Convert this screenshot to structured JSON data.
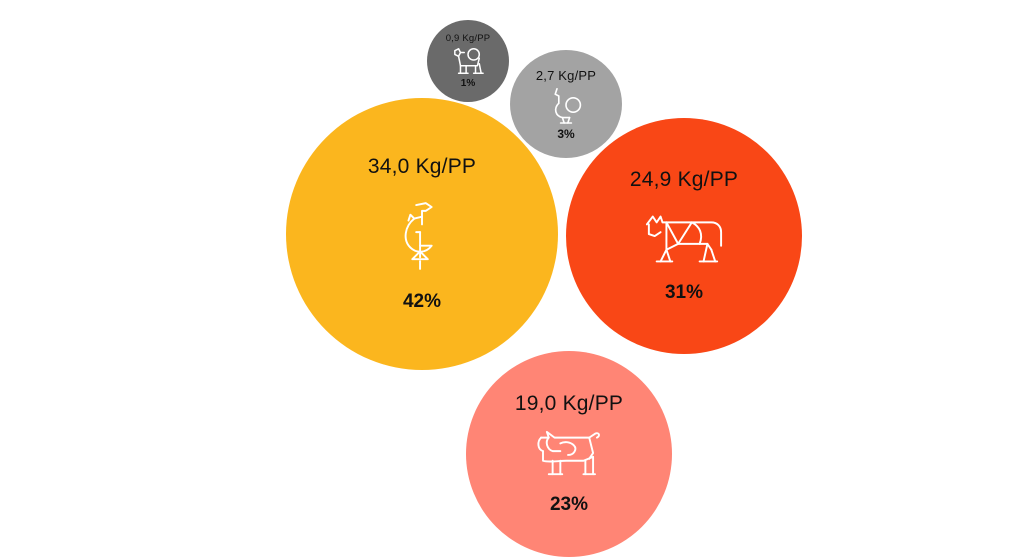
{
  "chart_data": {
    "type": "bubble",
    "unit": "Kg/PP",
    "items": [
      {
        "key": "chicken",
        "value_label": "34,0 Kg/PP",
        "value": 34.0,
        "percent_label": "42%",
        "percent": 42,
        "color": "#FBB61E",
        "icon": "chicken-icon"
      },
      {
        "key": "beef",
        "value_label": "24,9 Kg/PP",
        "value": 24.9,
        "percent_label": "31%",
        "percent": 31,
        "color": "#F94716",
        "icon": "cow-icon"
      },
      {
        "key": "pork",
        "value_label": "19,0 Kg/PP",
        "value": 19.0,
        "percent_label": "23%",
        "percent": 23,
        "color": "#FF8575",
        "icon": "pig-icon"
      },
      {
        "key": "turkey",
        "value_label": "2,7 Kg/PP",
        "value": 2.7,
        "percent_label": "3%",
        "percent": 3,
        "color": "#A3A3A3",
        "icon": "turkey-icon"
      },
      {
        "key": "lamb",
        "value_label": "0,9 Kg/PP",
        "value": 0.9,
        "percent_label": "1%",
        "percent": 1,
        "color": "#6A6A6A",
        "icon": "goat-icon"
      }
    ]
  }
}
